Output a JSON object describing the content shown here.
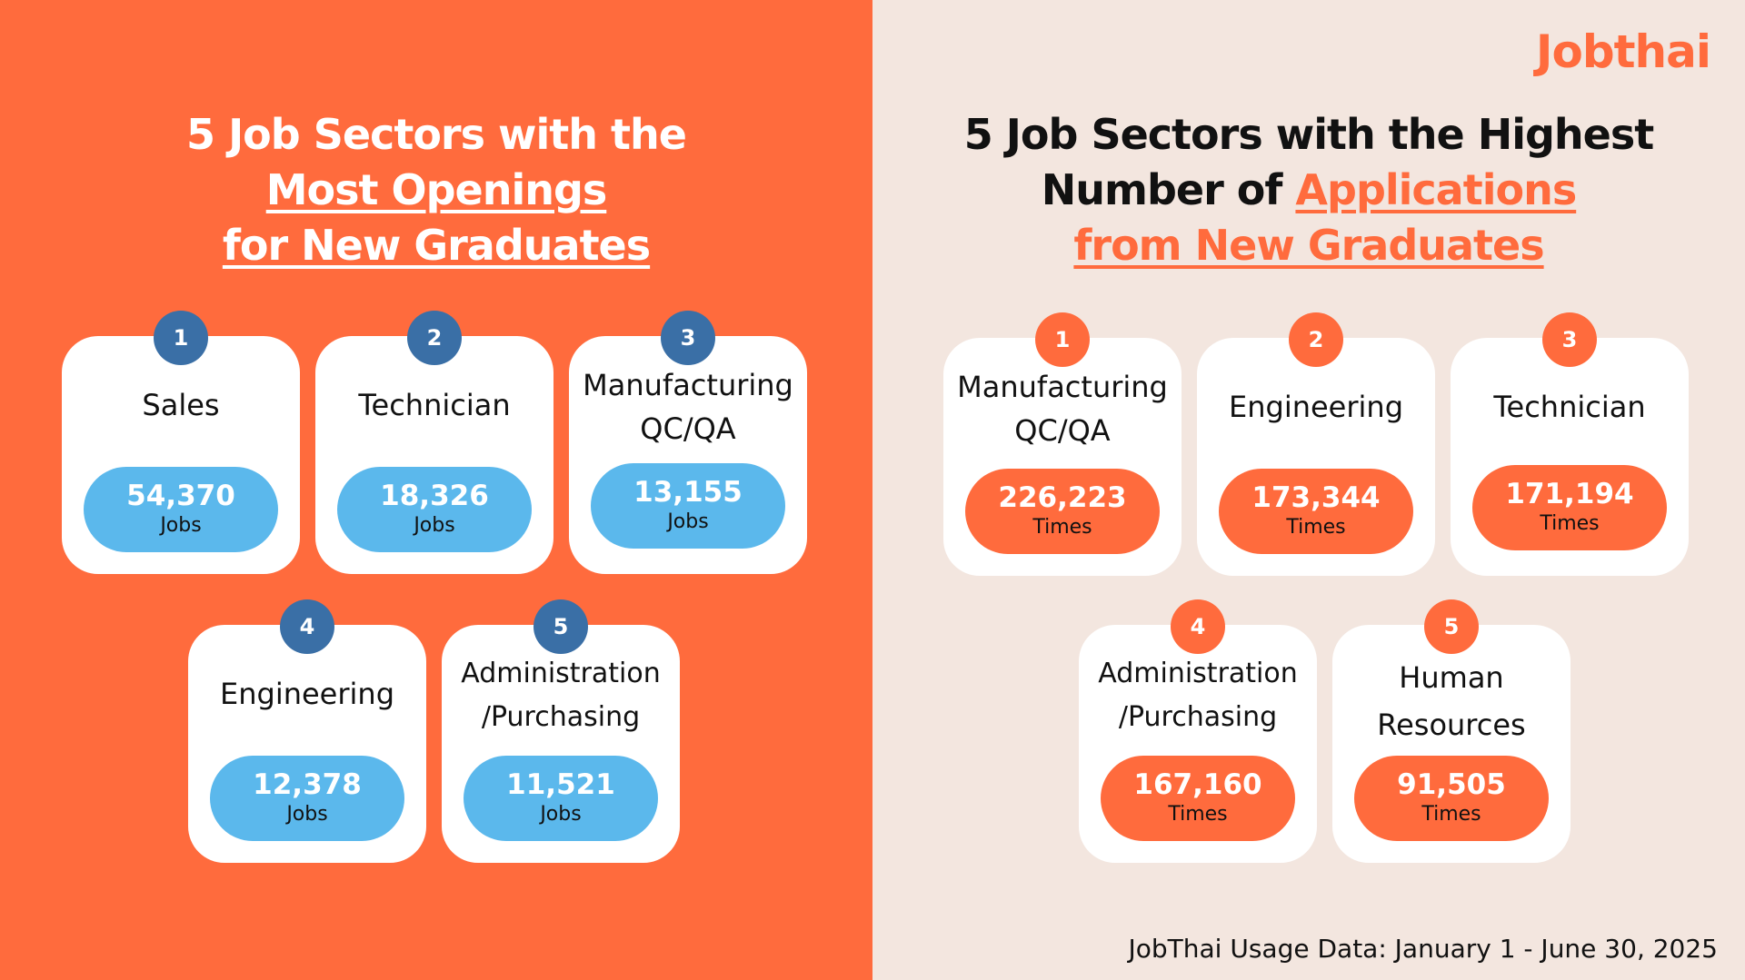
{
  "brand": {
    "logo_text": "Jobthai"
  },
  "colors": {
    "orange": "#ff6b3d",
    "cream": "#f3e6df",
    "blue_badge": "#3a6fa6",
    "blue_pill": "#5bb8ec"
  },
  "left": {
    "heading_line1": "5 Job Sectors with the",
    "heading_line2": "Most Openings",
    "heading_line3": "for New Graduates",
    "cards": [
      {
        "rank": "1",
        "name": "Sales",
        "value": "54,370",
        "unit": "Jobs"
      },
      {
        "rank": "2",
        "name": "Technician",
        "value": "18,326",
        "unit": "Jobs"
      },
      {
        "rank": "3",
        "name": "Manufacturing\nQC/QA",
        "value": "13,155",
        "unit": "Jobs"
      },
      {
        "rank": "4",
        "name": "Engineering",
        "value": "12,378",
        "unit": "Jobs"
      },
      {
        "rank": "5",
        "name": "Administration\n/Purchasing",
        "value": "11,521",
        "unit": "Jobs"
      }
    ]
  },
  "right": {
    "heading_line1": "5  Job Sectors with the Highest",
    "heading_line2_plain": "Number of ",
    "heading_line2_highlight": "Applications",
    "heading_line3": "from New Graduates",
    "cards": [
      {
        "rank": "1",
        "name": "Manufacturing\nQC/QA",
        "value": "226,223",
        "unit": "Times"
      },
      {
        "rank": "2",
        "name": "Engineering",
        "value": "173,344",
        "unit": "Times"
      },
      {
        "rank": "3",
        "name": "Technician",
        "value": "171,194",
        "unit": "Times"
      },
      {
        "rank": "4",
        "name": "Administration\n/Purchasing",
        "value": "167,160",
        "unit": "Times"
      },
      {
        "rank": "5",
        "name": "Human\nResources",
        "value": "91,505",
        "unit": "Times"
      }
    ]
  },
  "footer": {
    "source": "JobThai Usage Data: January 1 - June 30, 2025"
  }
}
